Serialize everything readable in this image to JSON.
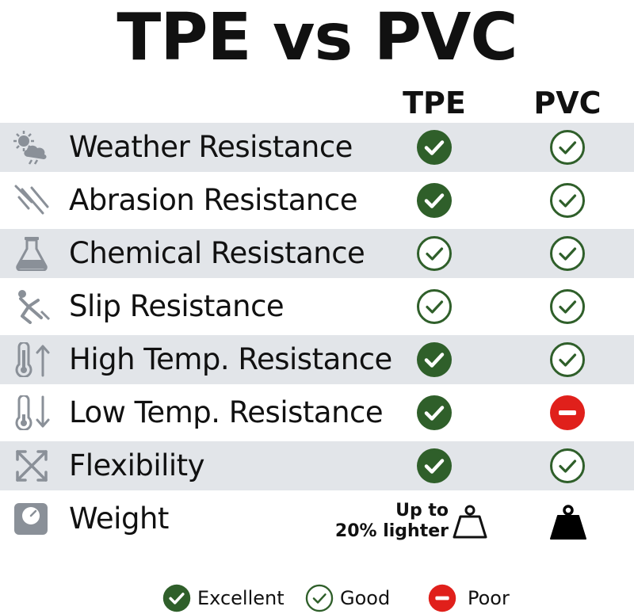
{
  "title": "TPE vs PVC",
  "columns": {
    "tpe": "TPE",
    "pvc": "PVC"
  },
  "colors": {
    "excellent": "#2f5f2a",
    "good": "#2f5f2a",
    "poor": "#e0201b",
    "row_shade": "#e2e5e9",
    "icon_gray": "#8a9098"
  },
  "rows": [
    {
      "label": "Weather Resistance",
      "icon": "weather-icon",
      "tpe": "excellent",
      "pvc": "good"
    },
    {
      "label": "Abrasion Resistance",
      "icon": "scratch-icon",
      "tpe": "excellent",
      "pvc": "good"
    },
    {
      "label": "Chemical Resistance",
      "icon": "flask-icon",
      "tpe": "good",
      "pvc": "good"
    },
    {
      "label": "Slip Resistance",
      "icon": "slip-icon",
      "tpe": "good",
      "pvc": "good"
    },
    {
      "label": "High Temp. Resistance",
      "icon": "thermometer-up-icon",
      "tpe": "excellent",
      "pvc": "good"
    },
    {
      "label": "Low Temp. Resistance",
      "icon": "thermometer-down-icon",
      "tpe": "excellent",
      "pvc": "poor"
    },
    {
      "label": "Flexibility",
      "icon": "expand-arrows-icon",
      "tpe": "excellent",
      "pvc": "good"
    },
    {
      "label": "Weight",
      "icon": "scale-icon",
      "tpe": "light",
      "pvc": "heavy"
    }
  ],
  "weight": {
    "line1": "Up to",
    "line2": "20% lighter"
  },
  "legend": {
    "excellent": "Excellent",
    "good": "Good",
    "poor": "Poor"
  }
}
